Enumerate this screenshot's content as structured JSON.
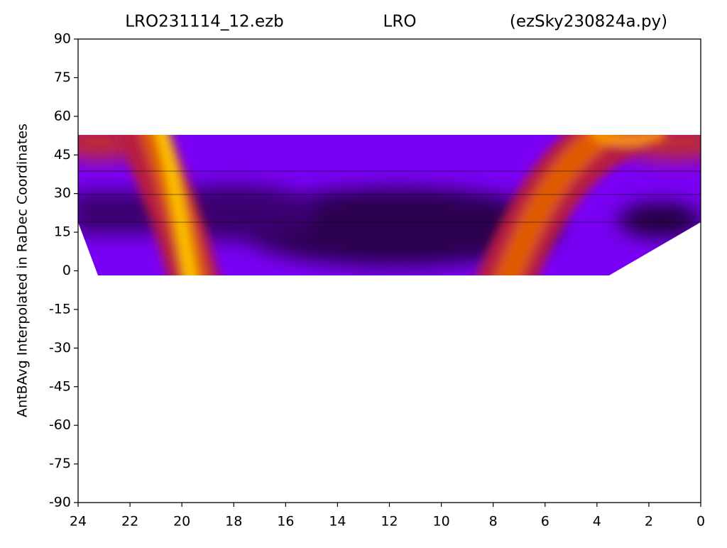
{
  "chart_data": {
    "type": "heatmap",
    "title_left": "LRO231114_12.ezb",
    "title": "LRO",
    "title_right": "(ezSky230824a.py)",
    "ylabel": "AntBAvg Interpolated in RaDec Coordinates",
    "xlim": [
      24,
      0
    ],
    "xticks": [
      24,
      22,
      20,
      18,
      16,
      14,
      12,
      10,
      8,
      6,
      4,
      2,
      0
    ],
    "ylim": [
      -90,
      90
    ],
    "yticks": [
      90,
      75,
      60,
      45,
      30,
      15,
      0,
      -15,
      -30,
      -45,
      -60,
      -75,
      -90
    ]
  }
}
